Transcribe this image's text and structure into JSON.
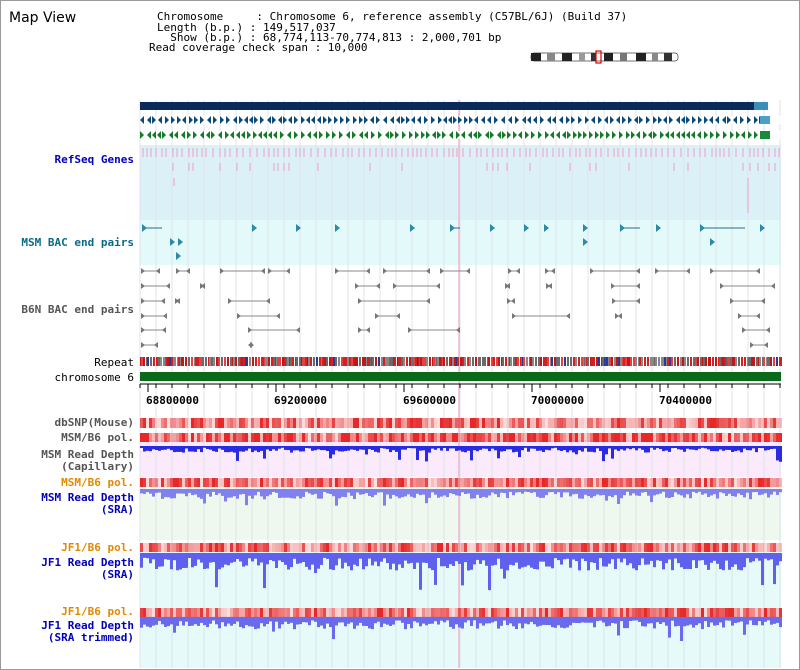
{
  "view_title": "Map View",
  "info": {
    "line1": "Chromosome     : Chromosome 6, reference assembly (C57BL/6J) (Build 37)",
    "line2": "Length (b.p.) : 149,517,037",
    "line3": "  Show (b.p.) : 68,774,113-70,774,813 : 2,000,701 bp",
    "line4": "Read coverage check span : 10,000"
  },
  "tracks": {
    "refseq": "RefSeq Genes",
    "msm_bac": "MSM BAC end pairs",
    "b6n_bac": "B6N BAC end pairs",
    "repeat": "Repeat",
    "chromosome": "chromosome 6",
    "dbsnp": "dbSNP(Mouse)",
    "msm_pol": "MSM/B6 pol.",
    "msm_depth_cap": "MSM Read Depth\n(Capillary)",
    "msm_pol2": "MSM/B6 pol.",
    "msm_depth_sra": "MSM Read Depth\n(SRA)",
    "jf1_pol": "JF1/B6 pol.",
    "jf1_depth_sra": "JF1 Read Depth\n(SRA)",
    "jf1_pol2": "JF1/B6 pol.",
    "jf1_depth_trim": "JF1 Read Depth\n(SRA trimmed)"
  },
  "axis": {
    "ticks": [
      "68800000",
      "69200000",
      "69600000",
      "70000000",
      "70400000"
    ]
  },
  "colors": {
    "label_blue": "#0000bb",
    "label_teal": "#0a6a8a",
    "label_gray": "#555555",
    "label_orange": "#e08a00",
    "gene_dark": "#0b2a5a",
    "refseq_bg": "#dcf0f8",
    "msm_bg": "#e4fafa",
    "chrom_green": "#0b6a1a",
    "depth_blue": "#3a3ae8"
  }
}
